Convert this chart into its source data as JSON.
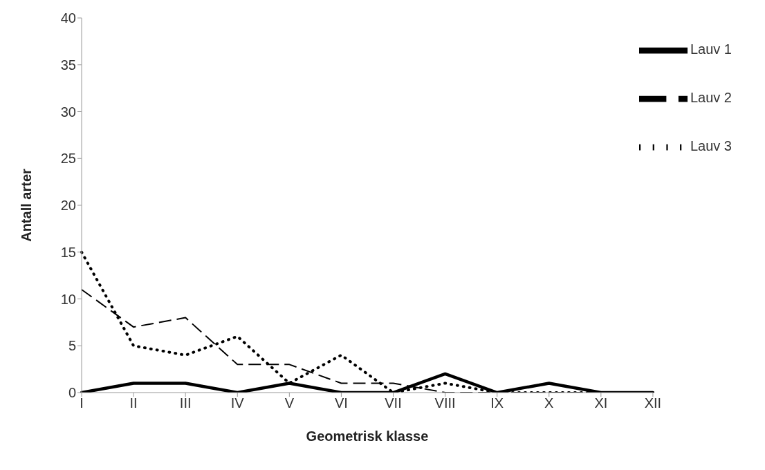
{
  "chart_data": {
    "type": "line",
    "xlabel": "Geometrisk klasse",
    "ylabel": "Antall arter",
    "categories": [
      "I",
      "II",
      "III",
      "IV",
      "V",
      "VI",
      "VII",
      "VIII",
      "IX",
      "X",
      "XI",
      "XII"
    ],
    "series": [
      {
        "name": "Lauv 1",
        "color": "#000000",
        "line_style": "solid",
        "values": [
          0,
          1,
          1,
          0,
          1,
          0,
          0,
          2,
          0,
          1,
          0,
          0
        ]
      },
      {
        "name": "Lauv 2",
        "color": "#000000",
        "line_style": "dashed",
        "values": [
          11,
          7,
          8,
          3,
          3,
          1,
          1,
          0,
          0,
          0,
          0,
          0
        ]
      },
      {
        "name": "Lauv 3",
        "color": "#000000",
        "line_style": "dotted",
        "values": [
          15,
          5,
          4,
          6,
          1,
          4,
          0,
          1,
          0,
          0,
          0,
          0
        ]
      }
    ],
    "ylim": [
      0,
      40
    ],
    "yticks": [
      0,
      5,
      10,
      15,
      20,
      25,
      30,
      35,
      40
    ],
    "grid": false,
    "legend": "top right",
    "marker": "none"
  }
}
